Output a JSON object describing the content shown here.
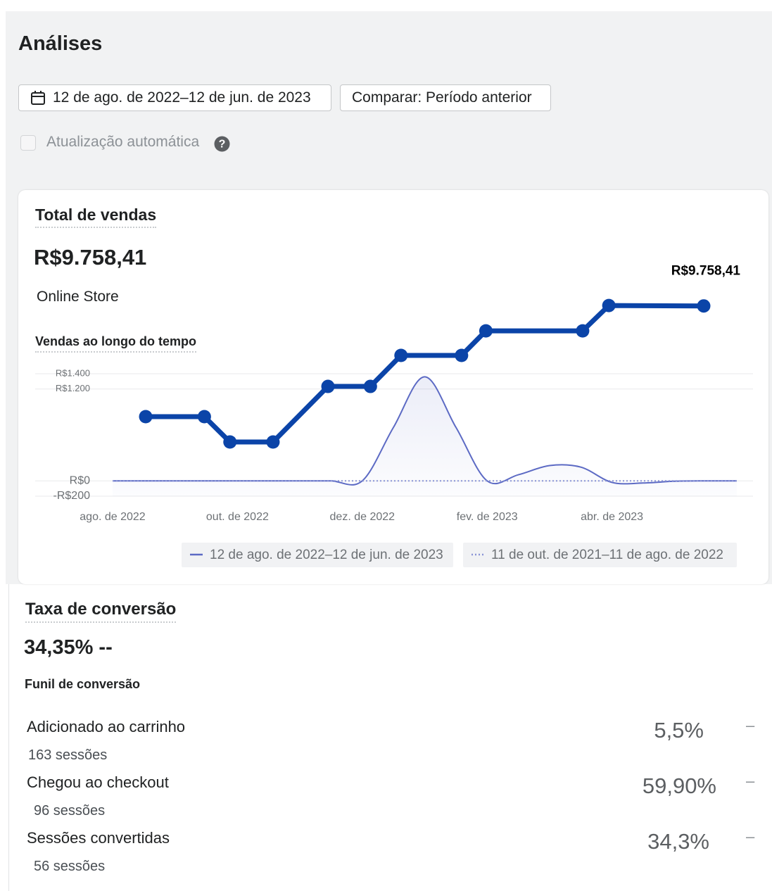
{
  "header": {
    "title": "Análises"
  },
  "controls": {
    "date_range": "12 de ago. de 2022–12 de jun. de 2023",
    "compare": "Comparar: Período anterior",
    "auto_update": "Atualização automática"
  },
  "sales_card": {
    "title": "Total de vendas",
    "total": "R$9.758,41",
    "channel": "Online Store",
    "chart_title": "Vendas ao longo do tempo"
  },
  "chart_data": {
    "type": "line",
    "xlim": [
      0,
      10
    ],
    "xticks": [
      {
        "value": 0,
        "label": "ago. de 2022"
      },
      {
        "value": 2,
        "label": "out. de 2022"
      },
      {
        "value": 4,
        "label": "dez. de 2022"
      },
      {
        "value": 6,
        "label": "fev. de 2023"
      },
      {
        "value": 8,
        "label": "abr. de 2023"
      }
    ],
    "ylim": [
      -200,
      1400
    ],
    "yticks": [
      {
        "value": 1400,
        "label": "R$1.400"
      },
      {
        "value": 1200,
        "label": "R$1.200"
      },
      {
        "value": 0,
        "label": "R$0"
      },
      {
        "value": -200,
        "label": "-R$200"
      }
    ],
    "y2lim": [
      0,
      10000
    ],
    "grid": true,
    "series": [
      {
        "name": "12 de ago. de 2022–12 de jun. de 2023",
        "color": "#5c6ac4",
        "style": "solid",
        "x": [
          0,
          0.5,
          1,
          1.5,
          2,
          2.5,
          3,
          3.5,
          4,
          4.5,
          5,
          5.5,
          6,
          6.5,
          7,
          7.5,
          8,
          8.5,
          9,
          9.5,
          10
        ],
        "values": [
          0,
          0,
          0,
          0,
          0,
          0,
          0,
          0,
          0,
          700,
          1360,
          700,
          0,
          80,
          200,
          180,
          -20,
          -28,
          -5,
          0,
          0
        ]
      },
      {
        "name": "11 de out. de 2021–11 de ago. de 2022",
        "color": "#8a94d6",
        "style": "dotted",
        "x": [
          0,
          10
        ],
        "values": [
          0,
          0
        ]
      },
      {
        "color": "#0b44a8",
        "axis": "y2",
        "style": "thick",
        "x": [
          0.53,
          1.47,
          1.88,
          2.57,
          3.45,
          4.13,
          4.62,
          5.59,
          5.98,
          7.53,
          7.95,
          9.47
        ],
        "values": [
          4080,
          4080,
          2780,
          2780,
          5630,
          5630,
          7220,
          7220,
          8480,
          8480,
          9780,
          9758.41
        ],
        "value_labels": [
          null,
          null,
          null,
          null,
          null,
          null,
          null,
          null,
          null,
          null,
          null,
          "R$9.758,41"
        ]
      }
    ]
  },
  "conversion": {
    "title": "Taxa de conversão",
    "rate": "34,35% --",
    "funnel_title": "Funil de conversão",
    "steps": [
      {
        "label": "Adicionado ao carrinho",
        "sessions": "163  sessões",
        "rate": "5,5%",
        "change": "–"
      },
      {
        "label": "Chegou ao checkout",
        "sessions": "96 sessões",
        "rate": "59,90%",
        "change": "–"
      },
      {
        "label": "Sessões convertidas",
        "sessions": "56 sessões",
        "rate": "34,3%",
        "change": "–"
      }
    ]
  }
}
